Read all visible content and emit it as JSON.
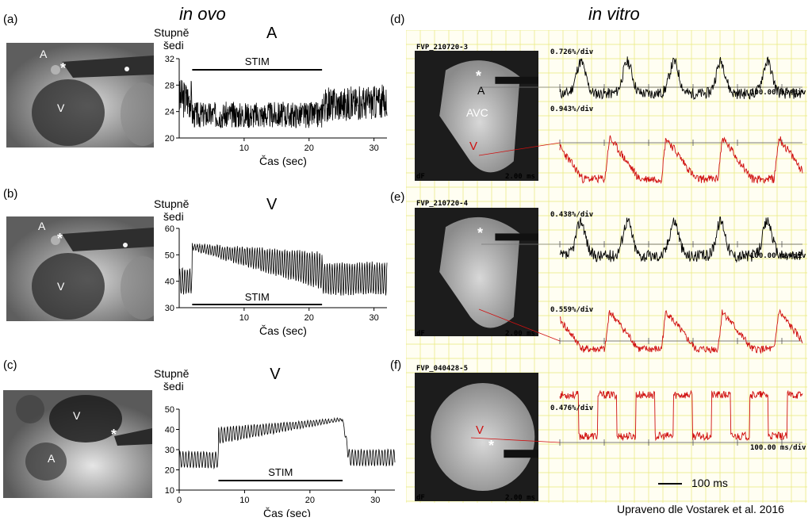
{
  "titles": {
    "left": "in ovo",
    "right": "in vitro"
  },
  "credit": "Upraveno dle Vostarek et al. 2016",
  "scale_bar_label": "100 ms",
  "colors": {
    "black_trace": "#000000",
    "red_trace": "#d01010",
    "grid": "#e8e87a",
    "grid_bg": "#fffef2"
  },
  "in_ovo": [
    {
      "label": "(a)",
      "photo_labels": {
        "a": "A",
        "v": "V",
        "star": "*"
      },
      "chart_data": {
        "type": "line",
        "title": "A",
        "ylabel": "Stupně šedi",
        "xlabel": "Čas (sec)",
        "xlim": [
          0,
          32
        ],
        "ylim": [
          20,
          32
        ],
        "xticks": [
          "10",
          "20",
          "30"
        ],
        "yticks": [
          "20",
          "24",
          "28",
          "32"
        ],
        "annotation": "STIM",
        "stim_range": [
          2,
          22
        ],
        "description_values": {
          "pre_stim_mean": 26,
          "stim_mean": 23.5,
          "post_stim_mean": 25,
          "amplitude": 2
        }
      }
    },
    {
      "label": "(b)",
      "photo_labels": {
        "a": "A",
        "v": "V",
        "star": "*"
      },
      "chart_data": {
        "type": "line",
        "title": "V",
        "ylabel": "Stupně šedi",
        "xlabel": "Čas (sec)",
        "xlim": [
          0,
          32
        ],
        "ylim": [
          30,
          60
        ],
        "xticks": [
          "10",
          "20",
          "30"
        ],
        "yticks": [
          "30",
          "40",
          "50",
          "60"
        ],
        "annotation": "STIM",
        "stim_range": [
          2,
          22
        ],
        "description_values": {
          "pre_stim_mean": 40,
          "stim_peak_mean": 53,
          "post_stim_mean": 41,
          "amplitude": 6
        }
      }
    },
    {
      "label": "(c)",
      "photo_labels": {
        "a": "A",
        "v": "V",
        "star": "*"
      },
      "chart_data": {
        "type": "line",
        "title": "V",
        "ylabel": "Stupně šedi",
        "xlabel": "Čas (sec)",
        "xlim": [
          0,
          33
        ],
        "ylim": [
          10,
          50
        ],
        "xticks": [
          "0",
          "10",
          "20",
          "30"
        ],
        "yticks": [
          "10",
          "20",
          "30",
          "40",
          "50"
        ],
        "annotation": "STIM",
        "stim_range": [
          6,
          25
        ],
        "description_values": {
          "pre_stim_mean": 25,
          "stim_start_mean": 37,
          "stim_end_mean": 45,
          "post_stim_mean": 26,
          "amplitude": 4
        }
      }
    }
  ],
  "in_vitro": [
    {
      "label": "(d)",
      "recording": "FVP_210720-3",
      "dF": "dF",
      "frame_time": "2.00 ms",
      "photo_labels": {
        "star": "*",
        "a": "A",
        "avc": "AVC",
        "v": "V"
      },
      "traces": [
        {
          "scale": "0.726%/div",
          "color": "black",
          "time_scale": "100.00 ms/div"
        },
        {
          "scale": "0.943%/div",
          "color": "red"
        }
      ]
    },
    {
      "label": "(e)",
      "recording": "FVP_210720-4",
      "dF": "dF",
      "frame_time": "2.00 ms",
      "photo_labels": {
        "star": "*"
      },
      "traces": [
        {
          "scale": "0.438%/div",
          "color": "black",
          "time_scale": "100.00 ms/div"
        },
        {
          "scale": "0.559%/div",
          "color": "red"
        }
      ]
    },
    {
      "label": "(f)",
      "recording": "FVP_040428-5",
      "dF": "dF",
      "frame_time": "2.00 ms",
      "photo_labels": {
        "star": "*",
        "v": "V"
      },
      "traces": [
        {
          "scale": "0.476%/div",
          "color": "red",
          "time_scale": "100.00 ms/div"
        }
      ]
    }
  ]
}
